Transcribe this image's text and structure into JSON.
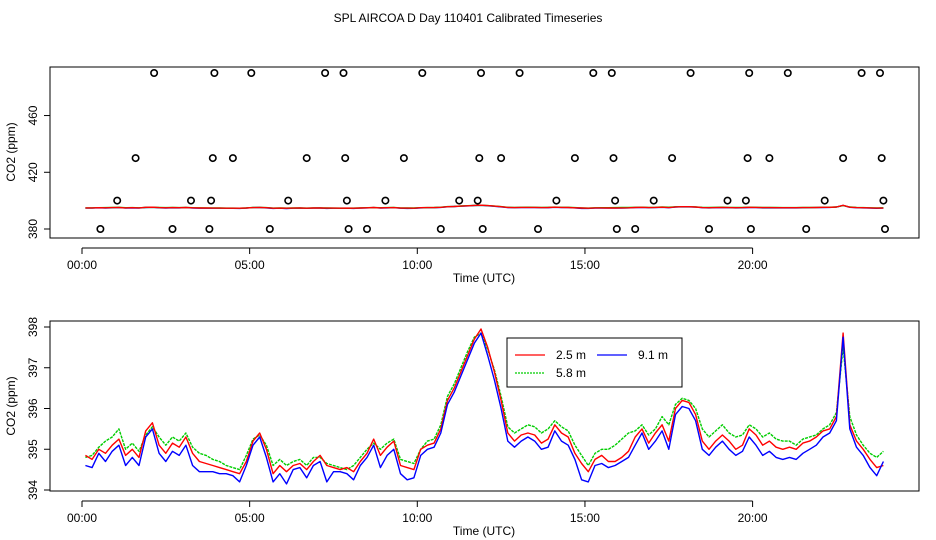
{
  "title": "SPL AIRCOA D  Day 110401  Calibrated Timeseries",
  "chart_data": [
    {
      "type": "scatter",
      "xlabel": "Time (UTC)",
      "ylabel": "CO2 (ppm)",
      "xlim": [
        0,
        24
      ],
      "ylim": [
        376,
        494
      ],
      "xticks": [
        0,
        5,
        10,
        15,
        20
      ],
      "xtick_labels": [
        "00:00",
        "05:00",
        "10:00",
        "15:00",
        "20:00"
      ],
      "yticks": [
        380,
        420,
        460
      ],
      "ytick_labels": [
        "380",
        "420",
        "460"
      ],
      "points": {
        "x": [
          0.55,
          1.05,
          1.6,
          2.15,
          2.7,
          3.25,
          3.8,
          3.85,
          3.9,
          3.95,
          4.5,
          5.05,
          5.6,
          6.15,
          6.7,
          7.25,
          7.8,
          7.85,
          7.9,
          7.95,
          8.5,
          9.05,
          9.6,
          10.15,
          10.7,
          11.25,
          11.8,
          11.85,
          11.9,
          11.95,
          12.5,
          13.05,
          13.6,
          14.15,
          14.7,
          15.25,
          15.8,
          15.85,
          15.9,
          15.95,
          16.5,
          17.05,
          17.6,
          18.15,
          18.7,
          19.25,
          19.8,
          19.85,
          19.9,
          19.95,
          20.5,
          21.05,
          21.6,
          22.15,
          22.7,
          23.25,
          23.8,
          23.85,
          23.9,
          23.95
        ],
        "y": [
          380,
          400,
          430,
          490,
          380,
          400,
          380,
          400,
          430,
          490,
          430,
          490,
          380,
          400,
          430,
          490,
          490,
          430,
          400,
          380,
          380,
          400,
          430,
          490,
          380,
          400,
          400,
          430,
          490,
          380,
          430,
          490,
          380,
          400,
          430,
          490,
          490,
          430,
          400,
          380,
          380,
          400,
          430,
          490,
          380,
          400,
          400,
          430,
          490,
          380,
          430,
          490,
          380,
          400,
          430,
          490,
          490,
          430,
          400,
          380
        ]
      },
      "series": [
        {
          "name": "2.5 m",
          "color": "#ff0000"
        },
        {
          "name": "5.8 m",
          "color": "#00cd00"
        },
        {
          "name": "9.1 m",
          "color": "#0000ff"
        }
      ],
      "note": "series drawn as the near-flat lines at ~395 ppm, same data as the lower panel"
    },
    {
      "type": "line",
      "xlabel": "Time (UTC)",
      "ylabel": "CO2 (ppm)",
      "xlim": [
        0,
        24
      ],
      "ylim": [
        393.9,
        398.1
      ],
      "xticks": [
        0,
        5,
        10,
        15,
        20
      ],
      "xtick_labels": [
        "00:00",
        "05:00",
        "10:00",
        "15:00",
        "20:00"
      ],
      "yticks": [
        394,
        395,
        396,
        397,
        398
      ],
      "ytick_labels": [
        "394",
        "395",
        "396",
        "397",
        "398"
      ],
      "legend_position": "top-center",
      "x": [
        0.1,
        0.3,
        0.5,
        0.7,
        0.9,
        1.1,
        1.3,
        1.5,
        1.7,
        1.9,
        2.1,
        2.3,
        2.5,
        2.7,
        2.9,
        3.1,
        3.3,
        3.5,
        3.7,
        3.9,
        4.1,
        4.3,
        4.5,
        4.7,
        4.9,
        5.1,
        5.3,
        5.5,
        5.7,
        5.9,
        6.1,
        6.3,
        6.5,
        6.7,
        6.9,
        7.1,
        7.3,
        7.5,
        7.7,
        7.9,
        8.1,
        8.3,
        8.5,
        8.7,
        8.9,
        9.1,
        9.3,
        9.5,
        9.7,
        9.9,
        10.1,
        10.3,
        10.5,
        10.7,
        10.9,
        11.1,
        11.3,
        11.5,
        11.7,
        11.9,
        12.1,
        12.3,
        12.5,
        12.7,
        12.9,
        13.1,
        13.3,
        13.5,
        13.7,
        13.9,
        14.1,
        14.3,
        14.5,
        14.7,
        14.9,
        15.1,
        15.3,
        15.5,
        15.7,
        15.9,
        16.1,
        16.3,
        16.5,
        16.7,
        16.9,
        17.1,
        17.3,
        17.5,
        17.7,
        17.9,
        18.1,
        18.3,
        18.5,
        18.7,
        18.9,
        19.1,
        19.3,
        19.5,
        19.7,
        19.9,
        20.1,
        20.3,
        20.5,
        20.7,
        20.9,
        21.1,
        21.3,
        21.5,
        21.7,
        21.9,
        22.1,
        22.3,
        22.5,
        22.7,
        22.9,
        23.1,
        23.3,
        23.5,
        23.7,
        23.9
      ],
      "series": [
        {
          "name": "2.5 m",
          "color": "#ff0000",
          "values": [
            394.85,
            394.75,
            395.0,
            394.9,
            395.1,
            395.25,
            394.85,
            395.0,
            394.8,
            395.45,
            395.65,
            395.1,
            394.9,
            395.15,
            395.05,
            395.3,
            394.9,
            394.7,
            394.65,
            394.6,
            394.55,
            394.5,
            394.45,
            394.4,
            394.7,
            395.2,
            395.4,
            395.0,
            394.4,
            394.6,
            394.45,
            394.6,
            394.65,
            394.5,
            394.7,
            394.85,
            394.6,
            394.55,
            394.5,
            394.55,
            394.45,
            394.7,
            394.9,
            395.25,
            394.85,
            395.05,
            395.2,
            394.6,
            394.55,
            394.5,
            395.0,
            395.1,
            395.15,
            395.5,
            396.2,
            396.5,
            396.9,
            397.3,
            397.7,
            397.95,
            397.5,
            396.9,
            396.2,
            395.4,
            395.2,
            395.35,
            395.4,
            395.35,
            395.15,
            395.25,
            395.6,
            395.4,
            395.3,
            394.9,
            394.65,
            394.45,
            394.75,
            394.85,
            394.7,
            394.7,
            394.8,
            394.95,
            395.3,
            395.5,
            395.15,
            395.4,
            395.6,
            395.2,
            396.0,
            396.2,
            396.15,
            395.85,
            395.2,
            395.0,
            395.2,
            395.35,
            395.2,
            395.0,
            395.1,
            395.5,
            395.35,
            395.1,
            395.2,
            395.05,
            395.0,
            395.05,
            395.0,
            395.15,
            395.2,
            395.3,
            395.45,
            395.5,
            395.8,
            397.85,
            395.6,
            395.2,
            395.0,
            394.75,
            394.55,
            394.6
          ]
        },
        {
          "name": "5.8 m",
          "color": "#00cd00",
          "values": [
            394.8,
            394.85,
            395.05,
            395.2,
            395.3,
            395.5,
            395.0,
            395.15,
            394.95,
            395.35,
            395.55,
            395.3,
            395.1,
            395.3,
            395.2,
            395.4,
            395.05,
            394.9,
            394.85,
            394.75,
            394.7,
            394.6,
            394.55,
            394.5,
            394.85,
            395.25,
            395.35,
            395.1,
            394.6,
            394.75,
            394.6,
            394.7,
            394.75,
            394.6,
            394.8,
            394.8,
            394.65,
            394.6,
            394.55,
            394.5,
            394.6,
            394.8,
            395.0,
            395.15,
            395.0,
            395.15,
            395.25,
            394.75,
            394.7,
            394.65,
            395.0,
            395.2,
            395.25,
            395.6,
            396.3,
            396.6,
            397.0,
            397.4,
            397.75,
            397.85,
            397.45,
            396.95,
            396.3,
            395.55,
            395.4,
            395.5,
            395.6,
            395.55,
            395.4,
            395.5,
            395.7,
            395.55,
            395.45,
            395.1,
            394.85,
            394.6,
            394.9,
            395.0,
            395.0,
            395.1,
            395.25,
            395.4,
            395.45,
            395.6,
            395.35,
            395.5,
            395.8,
            395.6,
            396.1,
            396.25,
            396.2,
            396.0,
            395.5,
            395.3,
            395.45,
            395.6,
            395.4,
            395.3,
            395.35,
            395.6,
            395.5,
            395.3,
            395.4,
            395.25,
            395.2,
            395.2,
            395.1,
            395.25,
            395.3,
            395.35,
            395.5,
            395.6,
            395.9,
            397.5,
            395.8,
            395.35,
            395.1,
            394.9,
            394.8,
            394.95
          ]
        },
        {
          "name": "9.1 m",
          "color": "#0000ff",
          "values": [
            394.6,
            394.55,
            394.9,
            394.7,
            394.95,
            395.1,
            394.6,
            394.8,
            394.6,
            395.3,
            395.5,
            394.9,
            394.7,
            394.95,
            394.85,
            395.1,
            394.6,
            394.45,
            394.45,
            394.45,
            394.4,
            394.4,
            394.35,
            394.2,
            394.6,
            395.1,
            395.3,
            394.8,
            394.2,
            394.4,
            394.15,
            394.5,
            394.55,
            394.3,
            394.6,
            394.7,
            394.2,
            394.45,
            394.45,
            394.4,
            394.25,
            394.6,
            394.8,
            395.1,
            394.55,
            394.85,
            395.0,
            394.4,
            394.25,
            394.3,
            394.85,
            395.0,
            395.05,
            395.4,
            396.1,
            396.4,
            396.8,
            397.2,
            397.6,
            397.85,
            397.3,
            396.7,
            396.0,
            395.2,
            395.05,
            395.2,
            395.3,
            395.2,
            395.0,
            395.05,
            395.45,
            395.2,
            395.1,
            394.75,
            394.25,
            394.2,
            394.6,
            394.65,
            394.55,
            394.6,
            394.7,
            394.8,
            395.1,
            395.4,
            395.0,
            395.2,
            395.45,
            395.0,
            395.85,
            396.05,
            396.0,
            395.7,
            395.0,
            394.85,
            395.05,
            395.2,
            395.0,
            394.85,
            394.95,
            395.3,
            395.1,
            394.85,
            394.95,
            394.8,
            394.75,
            394.8,
            394.75,
            394.9,
            395.0,
            395.1,
            395.3,
            395.4,
            395.7,
            397.75,
            395.5,
            395.05,
            394.85,
            394.55,
            394.35,
            394.7
          ]
        }
      ]
    }
  ]
}
